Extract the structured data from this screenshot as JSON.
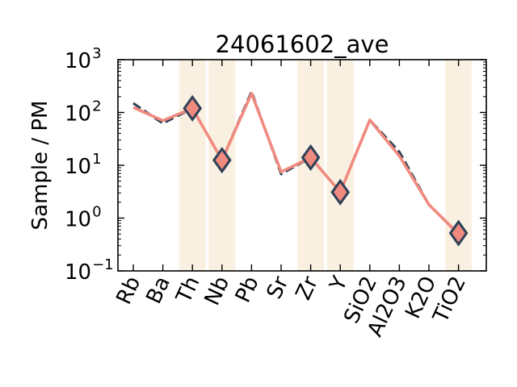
{
  "chart_data": {
    "type": "line",
    "title": "24061602_ave",
    "ylabel": "Sample / PM",
    "xlabel": "",
    "y_scale": "log",
    "ylim": [
      0.1,
      1000
    ],
    "y_ticks": [
      {
        "base": "10",
        "exp": "−1",
        "value": 0.1
      },
      {
        "base": "10",
        "exp": "0",
        "value": 1
      },
      {
        "base": "10",
        "exp": "1",
        "value": 10
      },
      {
        "base": "10",
        "exp": "2",
        "value": 100
      },
      {
        "base": "10",
        "exp": "3",
        "value": 1000
      }
    ],
    "categories": [
      "Rb",
      "Ba",
      "Th",
      "Nb",
      "Pb",
      "Sr",
      "Zr",
      "Y",
      "SiO2",
      "Al2O3",
      "K2O",
      "TiO2"
    ],
    "highlighted_categories": [
      "Th",
      "Nb",
      "Zr",
      "Y",
      "TiO2"
    ],
    "series": [
      {
        "style": "dashed",
        "color": "#2e4057",
        "values": [
          150,
          62,
          120,
          12.5,
          250,
          6.8,
          14,
          3.1,
          72,
          18,
          1.8,
          0.5
        ]
      },
      {
        "style": "solid",
        "color": "#f08a7e",
        "values": [
          125,
          70,
          120,
          12.5,
          230,
          7.5,
          14,
          3.1,
          72,
          15,
          1.8,
          0.5
        ]
      }
    ],
    "markers": {
      "shape": "diamond",
      "fill": "#f08a7e",
      "edge": "#2e4057",
      "points": [
        {
          "category": "Th",
          "value": 120
        },
        {
          "category": "Nb",
          "value": 12.5
        },
        {
          "category": "Zr",
          "value": 14
        },
        {
          "category": "Y",
          "value": 3.1
        },
        {
          "category": "TiO2",
          "value": 0.52
        }
      ]
    },
    "band_color": "#faf0e1",
    "grid": false,
    "legend": "none"
  }
}
